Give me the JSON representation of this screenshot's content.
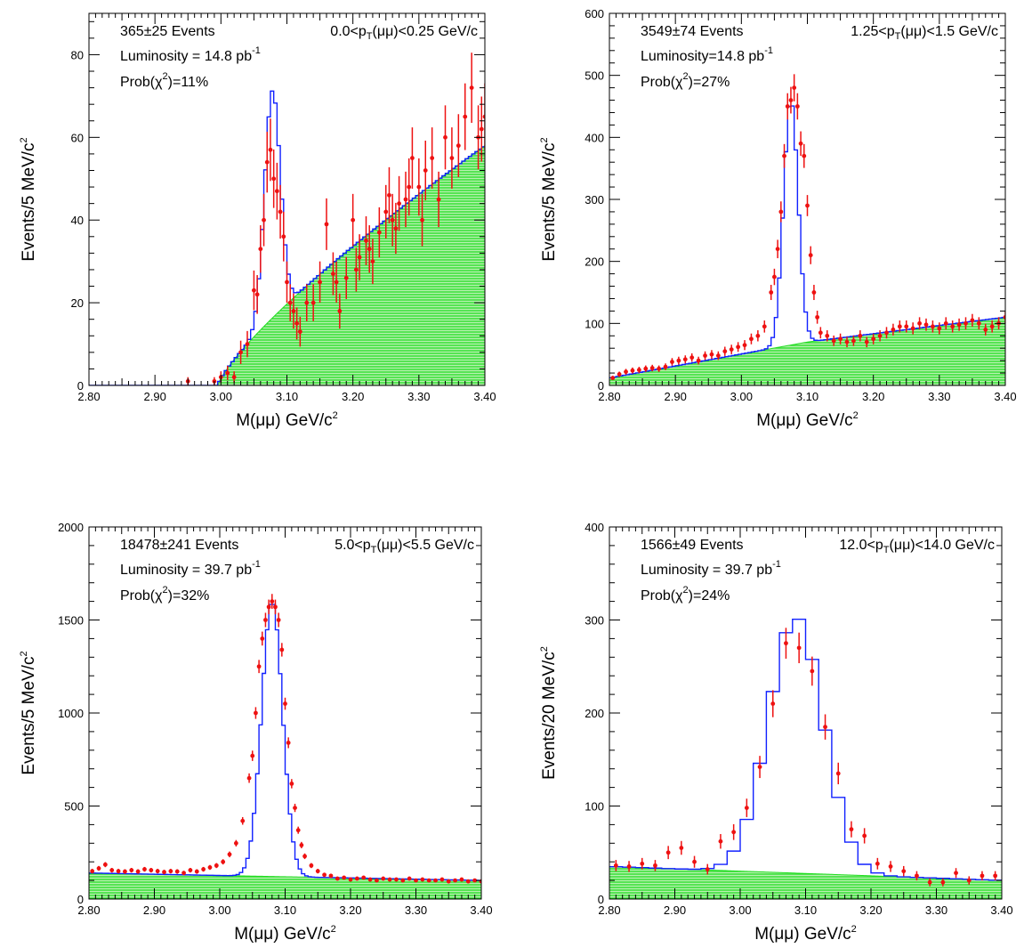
{
  "colors": {
    "background_fill": "#22dd22",
    "fit_line": "#1020ff",
    "data_points": "#ee1111",
    "frame": "#000000"
  },
  "chart_data": [
    {
      "type": "histogram",
      "annotations": {
        "events": "365±25 Events",
        "pt_left": "0.0<p",
        "pt_sub": "T",
        "pt_right": "(μμ)<0.25 GeV/c",
        "lumi": "Luminosity = 14.8 pb",
        "lumi_sup": "-1",
        "prob_left": "Prob(χ",
        "prob_sup": "2",
        "prob_right": ")=11%"
      },
      "xlabel": "M(μμ) GeV/c",
      "xlabel_sup": "2",
      "ylabel": "Events/5 MeV/c",
      "ylabel_sup": "2",
      "xlim": [
        2.8,
        3.4
      ],
      "ylim": [
        0,
        90
      ],
      "xticks": [
        "2.80",
        "2.90",
        "3.00",
        "3.10",
        "3.20",
        "3.30",
        "3.40"
      ],
      "yticks": [
        0,
        20,
        40,
        60,
        80
      ],
      "bin_width": 0.005,
      "background": {
        "kind": "threshold",
        "start": 2.995,
        "at_end": 58,
        "power": 0.8
      },
      "signal": {
        "mean": 3.078,
        "sigma": 0.012,
        "peak": 55
      },
      "points": [
        [
          2.95,
          1
        ],
        [
          2.99,
          1
        ],
        [
          3.0,
          2
        ],
        [
          3.01,
          3
        ],
        [
          3.02,
          2
        ],
        [
          3.03,
          8
        ],
        [
          3.04,
          10
        ],
        [
          3.05,
          23
        ],
        [
          3.055,
          22
        ],
        [
          3.06,
          33
        ],
        [
          3.065,
          40
        ],
        [
          3.07,
          54
        ],
        [
          3.075,
          57
        ],
        [
          3.08,
          50
        ],
        [
          3.085,
          47
        ],
        [
          3.09,
          42
        ],
        [
          3.095,
          36
        ],
        [
          3.1,
          25
        ],
        [
          3.105,
          20
        ],
        [
          3.11,
          18
        ],
        [
          3.115,
          15
        ],
        [
          3.12,
          13
        ],
        [
          3.13,
          20
        ],
        [
          3.14,
          20
        ],
        [
          3.15,
          25
        ],
        [
          3.16,
          39
        ],
        [
          3.17,
          27
        ],
        [
          3.175,
          25
        ],
        [
          3.18,
          18
        ],
        [
          3.19,
          26
        ],
        [
          3.2,
          40
        ],
        [
          3.205,
          28
        ],
        [
          3.21,
          31
        ],
        [
          3.22,
          35
        ],
        [
          3.225,
          33
        ],
        [
          3.23,
          30
        ],
        [
          3.24,
          37
        ],
        [
          3.25,
          42
        ],
        [
          3.255,
          46
        ],
        [
          3.26,
          40
        ],
        [
          3.265,
          38
        ],
        [
          3.27,
          44
        ],
        [
          3.28,
          45
        ],
        [
          3.285,
          48
        ],
        [
          3.29,
          55
        ],
        [
          3.3,
          48
        ],
        [
          3.305,
          40
        ],
        [
          3.31,
          52
        ],
        [
          3.32,
          55
        ],
        [
          3.33,
          45
        ],
        [
          3.34,
          60
        ],
        [
          3.35,
          55
        ],
        [
          3.36,
          58
        ],
        [
          3.37,
          65
        ],
        [
          3.38,
          72
        ],
        [
          3.39,
          60
        ],
        [
          3.395,
          62
        ],
        [
          3.4,
          65
        ]
      ]
    },
    {
      "type": "histogram",
      "annotations": {
        "events": "3549±74 Events",
        "pt_left": "1.25<p",
        "pt_sub": "T",
        "pt_right": "(μμ)<1.5 GeV/c",
        "lumi": "Luminosity=14.8 pb",
        "lumi_sup": "-1",
        "prob_left": "Prob(χ",
        "prob_sup": "2",
        "prob_right": ")=27%"
      },
      "xlabel": "M(μμ) GeV/c",
      "xlabel_sup": "2",
      "ylabel": "Events/5 MeV/c",
      "ylabel_sup": "2",
      "xlim": [
        2.8,
        3.4
      ],
      "ylim": [
        0,
        600
      ],
      "xticks": [
        "2.80",
        "2.90",
        "3.00",
        "3.10",
        "3.20",
        "3.30",
        "3.40"
      ],
      "yticks": [
        0,
        100,
        200,
        300,
        400,
        500,
        600
      ],
      "bin_width": 0.005,
      "background": {
        "kind": "rising",
        "start_value": 12,
        "mid_value": 70,
        "end_value": 110
      },
      "signal": {
        "mean": 3.075,
        "sigma": 0.011,
        "peak": 395
      },
      "points": [
        [
          2.805,
          12
        ],
        [
          2.815,
          18
        ],
        [
          2.825,
          22
        ],
        [
          2.835,
          24
        ],
        [
          2.845,
          25
        ],
        [
          2.855,
          27
        ],
        [
          2.865,
          28
        ],
        [
          2.875,
          27
        ],
        [
          2.885,
          30
        ],
        [
          2.895,
          38
        ],
        [
          2.905,
          40
        ],
        [
          2.915,
          42
        ],
        [
          2.925,
          45
        ],
        [
          2.935,
          40
        ],
        [
          2.945,
          48
        ],
        [
          2.955,
          50
        ],
        [
          2.965,
          48
        ],
        [
          2.975,
          55
        ],
        [
          2.985,
          58
        ],
        [
          2.995,
          62
        ],
        [
          3.005,
          65
        ],
        [
          3.015,
          75
        ],
        [
          3.025,
          80
        ],
        [
          3.035,
          95
        ],
        [
          3.045,
          150
        ],
        [
          3.05,
          175
        ],
        [
          3.055,
          220
        ],
        [
          3.06,
          280
        ],
        [
          3.065,
          370
        ],
        [
          3.07,
          450
        ],
        [
          3.075,
          460
        ],
        [
          3.08,
          480
        ],
        [
          3.085,
          450
        ],
        [
          3.09,
          390
        ],
        [
          3.095,
          370
        ],
        [
          3.1,
          290
        ],
        [
          3.105,
          210
        ],
        [
          3.11,
          150
        ],
        [
          3.115,
          110
        ],
        [
          3.12,
          85
        ],
        [
          3.13,
          80
        ],
        [
          3.14,
          72
        ],
        [
          3.15,
          75
        ],
        [
          3.16,
          70
        ],
        [
          3.17,
          72
        ],
        [
          3.18,
          80
        ],
        [
          3.19,
          70
        ],
        [
          3.2,
          75
        ],
        [
          3.21,
          80
        ],
        [
          3.22,
          85
        ],
        [
          3.23,
          90
        ],
        [
          3.24,
          95
        ],
        [
          3.25,
          95
        ],
        [
          3.26,
          92
        ],
        [
          3.27,
          100
        ],
        [
          3.28,
          98
        ],
        [
          3.29,
          95
        ],
        [
          3.3,
          92
        ],
        [
          3.31,
          100
        ],
        [
          3.32,
          95
        ],
        [
          3.33,
          98
        ],
        [
          3.34,
          100
        ],
        [
          3.35,
          105
        ],
        [
          3.36,
          100
        ],
        [
          3.37,
          90
        ],
        [
          3.38,
          95
        ],
        [
          3.39,
          100
        ],
        [
          3.4,
          110
        ]
      ]
    },
    {
      "type": "histogram",
      "annotations": {
        "events": "18478±241 Events",
        "pt_left": "5.0<p",
        "pt_sub": "T",
        "pt_right": "(μμ)<5.5 GeV/c",
        "lumi": "Luminosity = 39.7 pb",
        "lumi_sup": "-1",
        "prob_left": "Prob(χ",
        "prob_sup": "2",
        "prob_right": ")=32%"
      },
      "xlabel": "M(μμ) GeV/c",
      "xlabel_sup": "2",
      "ylabel": "Events/5 MeV/c",
      "ylabel_sup": "2",
      "xlim": [
        2.8,
        3.4
      ],
      "ylim": [
        0,
        2000
      ],
      "xticks": [
        "2.80",
        "2.90",
        "3.00",
        "3.10",
        "3.20",
        "3.30",
        "3.40"
      ],
      "yticks": [
        0,
        500,
        1000,
        1500,
        2000
      ],
      "bin_width": 0.005,
      "background": {
        "kind": "linear",
        "start_value": 140,
        "end_value": 100
      },
      "signal": {
        "mean": 3.08,
        "sigma": 0.016,
        "peak": 1480
      },
      "points": [
        [
          2.805,
          150
        ],
        [
          2.815,
          165
        ],
        [
          2.825,
          185
        ],
        [
          2.835,
          155
        ],
        [
          2.845,
          150
        ],
        [
          2.855,
          148
        ],
        [
          2.865,
          155
        ],
        [
          2.875,
          148
        ],
        [
          2.885,
          160
        ],
        [
          2.895,
          155
        ],
        [
          2.905,
          150
        ],
        [
          2.915,
          145
        ],
        [
          2.925,
          150
        ],
        [
          2.935,
          148
        ],
        [
          2.945,
          140
        ],
        [
          2.955,
          155
        ],
        [
          2.965,
          148
        ],
        [
          2.975,
          160
        ],
        [
          2.985,
          170
        ],
        [
          2.995,
          180
        ],
        [
          3.005,
          200
        ],
        [
          3.015,
          240
        ],
        [
          3.025,
          300
        ],
        [
          3.035,
          420
        ],
        [
          3.045,
          650
        ],
        [
          3.05,
          770
        ],
        [
          3.055,
          1000
        ],
        [
          3.06,
          1250
        ],
        [
          3.065,
          1400
        ],
        [
          3.07,
          1500
        ],
        [
          3.075,
          1570
        ],
        [
          3.08,
          1600
        ],
        [
          3.085,
          1570
        ],
        [
          3.09,
          1500
        ],
        [
          3.095,
          1340
        ],
        [
          3.1,
          1050
        ],
        [
          3.105,
          840
        ],
        [
          3.11,
          620
        ],
        [
          3.115,
          490
        ],
        [
          3.12,
          370
        ],
        [
          3.125,
          290
        ],
        [
          3.13,
          230
        ],
        [
          3.14,
          180
        ],
        [
          3.15,
          150
        ],
        [
          3.16,
          130
        ],
        [
          3.17,
          125
        ],
        [
          3.18,
          110
        ],
        [
          3.19,
          115
        ],
        [
          3.2,
          105
        ],
        [
          3.21,
          110
        ],
        [
          3.22,
          115
        ],
        [
          3.23,
          105
        ],
        [
          3.24,
          100
        ],
        [
          3.25,
          110
        ],
        [
          3.26,
          105
        ],
        [
          3.27,
          105
        ],
        [
          3.28,
          100
        ],
        [
          3.29,
          110
        ],
        [
          3.3,
          100
        ],
        [
          3.31,
          105
        ],
        [
          3.32,
          100
        ],
        [
          3.33,
          100
        ],
        [
          3.34,
          105
        ],
        [
          3.35,
          95
        ],
        [
          3.36,
          100
        ],
        [
          3.37,
          105
        ],
        [
          3.38,
          95
        ],
        [
          3.39,
          100
        ],
        [
          3.4,
          95
        ]
      ]
    },
    {
      "type": "histogram",
      "annotations": {
        "events": "1566±49 Events",
        "pt_left": "12.0<p",
        "pt_sub": "T",
        "pt_right": "(μμ)<14.0 GeV/c",
        "lumi": "Luminosity = 39.7 pb",
        "lumi_sup": "-1",
        "prob_left": "Prob(χ",
        "prob_sup": "2",
        "prob_right": ")=24%"
      },
      "xlabel": "M(μμ) GeV/c",
      "xlabel_sup": "2",
      "ylabel": "Events/20 MeV/c",
      "ylabel_sup": "2",
      "xlim": [
        2.8,
        3.4
      ],
      "ylim": [
        0,
        400
      ],
      "xticks": [
        "2.80",
        "2.90",
        "3.00",
        "3.10",
        "3.20",
        "3.30",
        "3.40"
      ],
      "yticks": [
        0,
        100,
        200,
        300,
        400
      ],
      "bin_width": 0.02,
      "background": {
        "kind": "linear",
        "start_value": 35,
        "end_value": 20
      },
      "signal": {
        "mean": 3.085,
        "sigma": 0.042,
        "peak": 275
      },
      "points": [
        [
          2.81,
          36
        ],
        [
          2.83,
          35
        ],
        [
          2.85,
          38
        ],
        [
          2.87,
          36
        ],
        [
          2.89,
          50
        ],
        [
          2.91,
          55
        ],
        [
          2.93,
          40
        ],
        [
          2.95,
          32
        ],
        [
          2.97,
          62
        ],
        [
          2.99,
          72
        ],
        [
          3.01,
          98
        ],
        [
          3.03,
          142
        ],
        [
          3.05,
          210
        ],
        [
          3.07,
          275
        ],
        [
          3.09,
          270
        ],
        [
          3.11,
          245
        ],
        [
          3.13,
          185
        ],
        [
          3.15,
          135
        ],
        [
          3.17,
          75
        ],
        [
          3.19,
          68
        ],
        [
          3.21,
          38
        ],
        [
          3.23,
          35
        ],
        [
          3.25,
          30
        ],
        [
          3.27,
          25
        ],
        [
          3.29,
          18
        ],
        [
          3.31,
          18
        ],
        [
          3.33,
          28
        ],
        [
          3.35,
          20
        ],
        [
          3.37,
          25
        ],
        [
          3.39,
          25
        ]
      ]
    }
  ]
}
